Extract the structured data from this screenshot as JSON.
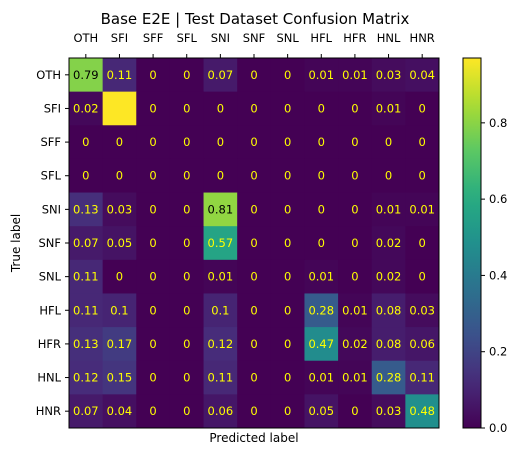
{
  "chart_data": {
    "type": "heatmap",
    "title": "Base E2E | Test Dataset Confusion Matrix",
    "xlabel": "Predicted label",
    "ylabel": "True label",
    "x_categories": [
      "OTH",
      "SFI",
      "SFF",
      "SFL",
      "SNI",
      "SNF",
      "SNL",
      "HFL",
      "HFR",
      "HNL",
      "HNR"
    ],
    "y_categories": [
      "OTH",
      "SFI",
      "SFF",
      "SFL",
      "SNI",
      "SNF",
      "SNL",
      "HFL",
      "HFR",
      "HNL",
      "HNR"
    ],
    "x_axis_position": "top",
    "values": [
      [
        0.79,
        0.11,
        0,
        0,
        0.07,
        0,
        0,
        0.01,
        0.01,
        0.03,
        0.04
      ],
      [
        0.02,
        0.97,
        0,
        0,
        0,
        0,
        0,
        0,
        0,
        0.01,
        0
      ],
      [
        0,
        0,
        0,
        0,
        0,
        0,
        0,
        0,
        0,
        0,
        0
      ],
      [
        0,
        0,
        0,
        0,
        0,
        0,
        0,
        0,
        0,
        0,
        0
      ],
      [
        0.13,
        0.03,
        0,
        0,
        0.81,
        0,
        0,
        0,
        0,
        0.01,
        0.01
      ],
      [
        0.07,
        0.05,
        0,
        0,
        0.57,
        0,
        0,
        0,
        0,
        0.02,
        0
      ],
      [
        0.11,
        0,
        0,
        0,
        0.01,
        0,
        0,
        0.01,
        0,
        0.02,
        0
      ],
      [
        0.11,
        0.1,
        0,
        0,
        0.1,
        0,
        0,
        0.28,
        0.01,
        0.08,
        0.03
      ],
      [
        0.13,
        0.17,
        0,
        0,
        0.12,
        0,
        0,
        0.47,
        0.02,
        0.08,
        0.06
      ],
      [
        0.12,
        0.15,
        0,
        0,
        0.11,
        0,
        0,
        0.01,
        0.01,
        0.28,
        0.11
      ],
      [
        0.07,
        0.04,
        0,
        0,
        0.06,
        0,
        0,
        0.05,
        0,
        0.03,
        0.48
      ]
    ],
    "cell_labels": [
      [
        "0.79",
        "0.11",
        "0",
        "0",
        "0.07",
        "0",
        "0",
        "0.01",
        "0.01",
        "0.03",
        "0.04"
      ],
      [
        "0.02",
        "",
        "0",
        "0",
        "0",
        "0",
        "0",
        "0",
        "0",
        "0.01",
        "0"
      ],
      [
        "0",
        "0",
        "0",
        "0",
        "0",
        "0",
        "0",
        "0",
        "0",
        "0",
        "0"
      ],
      [
        "0",
        "0",
        "0",
        "0",
        "0",
        "0",
        "0",
        "0",
        "0",
        "0",
        "0"
      ],
      [
        "0.13",
        "0.03",
        "0",
        "0",
        "0.81",
        "0",
        "0",
        "0",
        "0",
        "0.01",
        "0.01"
      ],
      [
        "0.07",
        "0.05",
        "0",
        "0",
        "0.57",
        "0",
        "0",
        "0",
        "0",
        "0.02",
        "0"
      ],
      [
        "0.11",
        "0",
        "0",
        "0",
        "0.01",
        "0",
        "0",
        "0.01",
        "0",
        "0.02",
        "0"
      ],
      [
        "0.11",
        "0.1",
        "0",
        "0",
        "0.1",
        "0",
        "0",
        "0.28",
        "0.01",
        "0.08",
        "0.03"
      ],
      [
        "0.13",
        "0.17",
        "0",
        "0",
        "0.12",
        "0",
        "0",
        "0.47",
        "0.02",
        "0.08",
        "0.06"
      ],
      [
        "0.12",
        "0.15",
        "0",
        "0",
        "0.11",
        "0",
        "0",
        "0.01",
        "0.01",
        "0.28",
        "0.11"
      ],
      [
        "0.07",
        "0.04",
        "0",
        "0",
        "0.06",
        "0",
        "0",
        "0.05",
        "0",
        "0.03",
        "0.48"
      ]
    ],
    "colormap": "viridis",
    "value_range": [
      0,
      0.97
    ],
    "colorbar": {
      "ticks": [
        0.0,
        0.2,
        0.4,
        0.6,
        0.8
      ],
      "tick_labels": [
        "0.0",
        "0.2",
        "0.4",
        "0.6",
        "0.8"
      ]
    },
    "grid": false,
    "text_color_low": "#ffff00",
    "text_color_high": "#000000"
  }
}
